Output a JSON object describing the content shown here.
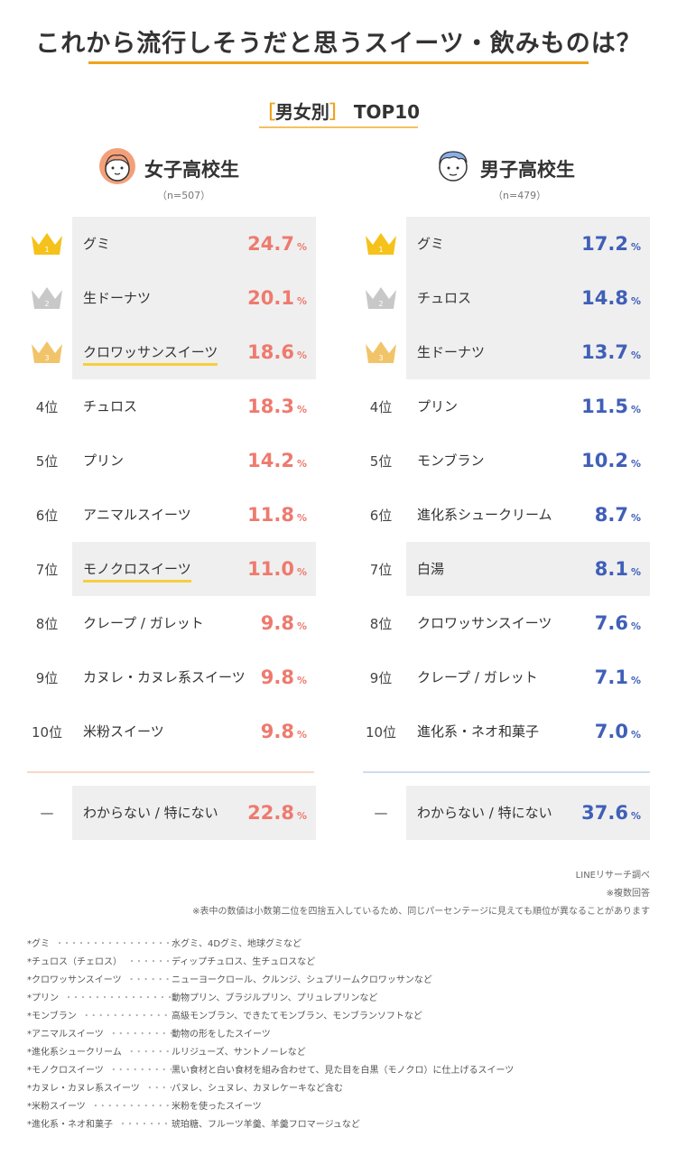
{
  "title": "これから流行しそうだと思うスイーツ・飲みものは？",
  "subtitle": {
    "open": "［",
    "text": "男女別",
    "close": "］",
    "rest": " TOP10"
  },
  "chart_data": {
    "type": "table",
    "unit": "%",
    "groups": [
      {
        "name": "女子高校生",
        "n": "（n=507）",
        "items": [
          {
            "rank": "1",
            "label": "グミ",
            "value": "24.7"
          },
          {
            "rank": "2",
            "label": "生ドーナツ",
            "value": "20.1"
          },
          {
            "rank": "3",
            "label": "クロワッサンスイーツ",
            "value": "18.6",
            "highlight": true
          },
          {
            "rank": "4位",
            "label": "チュロス",
            "value": "18.3"
          },
          {
            "rank": "5位",
            "label": "プリン",
            "value": "14.2"
          },
          {
            "rank": "6位",
            "label": "アニマルスイーツ",
            "value": "11.8"
          },
          {
            "rank": "7位",
            "label": "モノクロスイーツ",
            "value": "11.0",
            "highlight": true
          },
          {
            "rank": "8位",
            "label": "クレープ / ガレット",
            "value": "9.8"
          },
          {
            "rank": "9位",
            "label": "カヌレ・カヌレ系スイーツ",
            "value": "9.8"
          },
          {
            "rank": "10位",
            "label": "米粉スイーツ",
            "value": "9.8"
          }
        ],
        "dk": {
          "rank": "—",
          "label": "わからない / 特にない",
          "value": "22.8"
        }
      },
      {
        "name": "男子高校生",
        "n": "（n=479）",
        "items": [
          {
            "rank": "1",
            "label": "グミ",
            "value": "17.2"
          },
          {
            "rank": "2",
            "label": "チュロス",
            "value": "14.8"
          },
          {
            "rank": "3",
            "label": "生ドーナツ",
            "value": "13.7"
          },
          {
            "rank": "4位",
            "label": "プリン",
            "value": "11.5"
          },
          {
            "rank": "5位",
            "label": "モンブラン",
            "value": "10.2"
          },
          {
            "rank": "6位",
            "label": "進化系シュークリーム",
            "value": "8.7"
          },
          {
            "rank": "7位",
            "label": "白湯",
            "value": "8.1"
          },
          {
            "rank": "8位",
            "label": "クロワッサンスイーツ",
            "value": "7.6"
          },
          {
            "rank": "9位",
            "label": "クレープ / ガレット",
            "value": "7.1"
          },
          {
            "rank": "10位",
            "label": "進化系・ネオ和菓子",
            "value": "7.0"
          }
        ],
        "dk": {
          "rank": "—",
          "label": "わからない / 特にない",
          "value": "37.6"
        }
      }
    ]
  },
  "colors": {
    "accent": "#f0a31c",
    "girls": "#ee7a6e",
    "boys": "#3f5fb8",
    "gold": "#f5c21b",
    "silver": "#c8c8c8",
    "bronze": "#f2c46a"
  },
  "notes": {
    "source": "LINEリサーチ調べ",
    "multi": "※複数回答",
    "rounding": "※表中の数値は小数第二位を四捨五入しているため、同じパーセンテージに見えても順位が異なることがあります"
  },
  "definitions": [
    {
      "term": "*グミ",
      "desc": "水グミ、4Dグミ、地球グミなど"
    },
    {
      "term": "*チュロス（チェロス）",
      "desc": "ディップチュロス、生チュロスなど"
    },
    {
      "term": "*クロワッサンスイーツ",
      "desc": "ニューヨークロール、クルンジ、シュプリームクロワッサンなど"
    },
    {
      "term": "*プリン",
      "desc": "動物プリン、ブラジルプリン、プリュレプリンなど"
    },
    {
      "term": "*モンブラン",
      "desc": "高級モンブラン、できたてモンブラン、モンブランソフトなど"
    },
    {
      "term": "*アニマルスイーツ",
      "desc": "動物の形をしたスイーツ"
    },
    {
      "term": "*進化系シュークリーム",
      "desc": "ルリジューズ、サントノーレなど"
    },
    {
      "term": "*モノクロスイーツ",
      "desc": "黒い食材と白い食材を組み合わせて、見た目を白黒（モノクロ）に仕上げるスイーツ"
    },
    {
      "term": "*カヌレ・カヌレ系スイーツ",
      "desc": "パヌレ、シュヌレ、カヌレケーキなど含む"
    },
    {
      "term": "*米粉スイーツ",
      "desc": "米粉を使ったスイーツ"
    },
    {
      "term": "*進化系・ネオ和菓子",
      "desc": "琥珀糖、フルーツ羊羹、羊羹フロマージュなど"
    }
  ]
}
